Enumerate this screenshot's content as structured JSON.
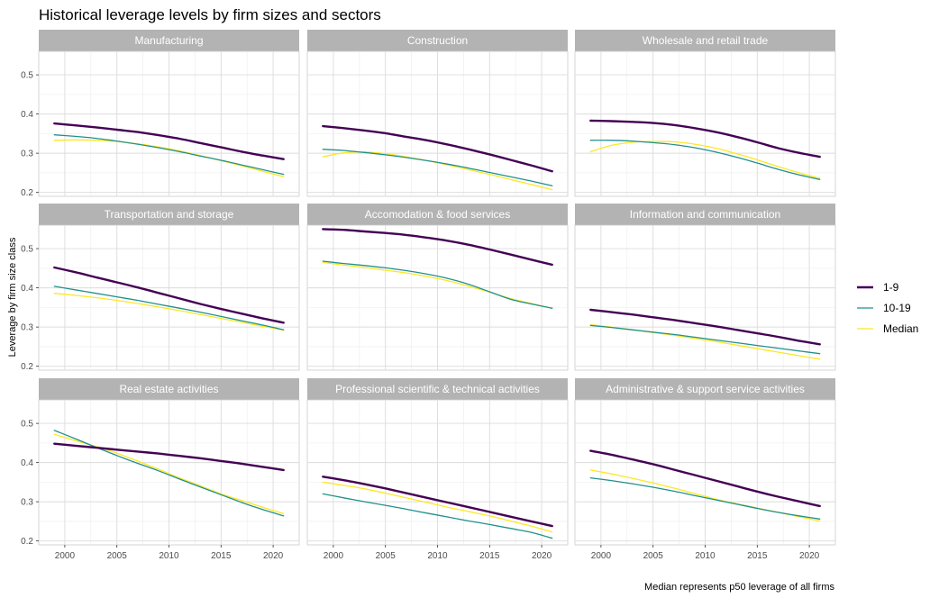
{
  "chart_data": {
    "type": "line",
    "title": "Historical leverage levels by firm sizes and sectors",
    "ylabel": "Leverage by firm size class",
    "xlabel": "",
    "caption": "Median represents p50 leverage of all firms",
    "x": [
      1999,
      2001,
      2003,
      2005,
      2007,
      2009,
      2011,
      2013,
      2015,
      2017,
      2019,
      2021
    ],
    "xticks": [
      2000,
      2005,
      2010,
      2015,
      2020
    ],
    "xlim": [
      1997.5,
      2022.5
    ],
    "yticks": [
      0.2,
      0.3,
      0.4,
      0.5
    ],
    "ylim": [
      0.19,
      0.56
    ],
    "grid": true,
    "legend_position": "right",
    "series_styles": [
      {
        "name": "1-9",
        "color": "#440154",
        "width": 2.4
      },
      {
        "name": "10-19",
        "color": "#21908C",
        "width": 1.3
      },
      {
        "name": "Median",
        "color": "#FDE725",
        "width": 1.3
      }
    ],
    "panels": [
      {
        "title": "Manufacturing",
        "series": [
          {
            "name": "1-9",
            "values": [
              0.376,
              0.371,
              0.366,
              0.36,
              0.354,
              0.346,
              0.337,
              0.326,
              0.315,
              0.304,
              0.294,
              0.285
            ]
          },
          {
            "name": "10-19",
            "values": [
              0.347,
              0.343,
              0.338,
              0.331,
              0.323,
              0.314,
              0.304,
              0.293,
              0.282,
              0.27,
              0.258,
              0.246
            ]
          },
          {
            "name": "Median",
            "values": [
              0.333,
              0.334,
              0.333,
              0.33,
              0.324,
              0.316,
              0.306,
              0.294,
              0.281,
              0.268,
              0.254,
              0.24
            ]
          }
        ]
      },
      {
        "title": "Construction",
        "series": [
          {
            "name": "1-9",
            "values": [
              0.369,
              0.364,
              0.358,
              0.351,
              0.342,
              0.333,
              0.322,
              0.31,
              0.297,
              0.283,
              0.269,
              0.254
            ]
          },
          {
            "name": "10-19",
            "values": [
              0.31,
              0.307,
              0.302,
              0.296,
              0.289,
              0.281,
              0.272,
              0.262,
              0.251,
              0.24,
              0.229,
              0.217
            ]
          },
          {
            "name": "Median",
            "values": [
              0.291,
              0.301,
              0.303,
              0.299,
              0.291,
              0.281,
              0.27,
              0.258,
              0.246,
              0.233,
              0.22,
              0.207
            ]
          }
        ]
      },
      {
        "title": "Wholesale and retail trade",
        "series": [
          {
            "name": "1-9",
            "values": [
              0.383,
              0.382,
              0.38,
              0.377,
              0.372,
              0.364,
              0.354,
              0.342,
              0.328,
              0.313,
              0.301,
              0.291
            ]
          },
          {
            "name": "10-19",
            "values": [
              0.333,
              0.333,
              0.331,
              0.327,
              0.322,
              0.314,
              0.303,
              0.29,
              0.275,
              0.259,
              0.245,
              0.233
            ]
          },
          {
            "name": "Median",
            "values": [
              0.304,
              0.32,
              0.328,
              0.33,
              0.329,
              0.323,
              0.313,
              0.299,
              0.283,
              0.266,
              0.25,
              0.236
            ]
          }
        ]
      },
      {
        "title": "Transportation and storage",
        "series": [
          {
            "name": "1-9",
            "values": [
              0.452,
              0.44,
              0.427,
              0.414,
              0.401,
              0.387,
              0.373,
              0.359,
              0.346,
              0.334,
              0.322,
              0.311
            ]
          },
          {
            "name": "10-19",
            "values": [
              0.404,
              0.395,
              0.386,
              0.377,
              0.368,
              0.358,
              0.348,
              0.338,
              0.327,
              0.316,
              0.305,
              0.293
            ]
          },
          {
            "name": "Median",
            "values": [
              0.386,
              0.381,
              0.375,
              0.368,
              0.36,
              0.351,
              0.342,
              0.332,
              0.322,
              0.312,
              0.302,
              0.292
            ]
          }
        ]
      },
      {
        "title": "Accomodation & food services",
        "series": [
          {
            "name": "1-9",
            "values": [
              0.55,
              0.548,
              0.544,
              0.54,
              0.535,
              0.528,
              0.52,
              0.51,
              0.498,
              0.485,
              0.472,
              0.459
            ]
          },
          {
            "name": "10-19",
            "values": [
              0.468,
              0.462,
              0.457,
              0.451,
              0.444,
              0.435,
              0.424,
              0.409,
              0.39,
              0.371,
              0.359,
              0.348
            ]
          },
          {
            "name": "Median",
            "values": [
              0.465,
              0.458,
              0.452,
              0.445,
              0.438,
              0.429,
              0.418,
              0.404,
              0.389,
              0.373,
              0.36,
              0.348
            ]
          }
        ]
      },
      {
        "title": "Information and communication",
        "series": [
          {
            "name": "1-9",
            "values": [
              0.344,
              0.338,
              0.332,
              0.325,
              0.318,
              0.31,
              0.302,
              0.293,
              0.284,
              0.275,
              0.265,
              0.256
            ]
          },
          {
            "name": "10-19",
            "values": [
              0.304,
              0.299,
              0.293,
              0.287,
              0.281,
              0.274,
              0.267,
              0.26,
              0.253,
              0.246,
              0.239,
              0.232
            ]
          },
          {
            "name": "Median",
            "values": [
              0.306,
              0.3,
              0.293,
              0.286,
              0.279,
              0.271,
              0.263,
              0.254,
              0.245,
              0.236,
              0.227,
              0.218
            ]
          }
        ]
      },
      {
        "title": "Real estate activities",
        "series": [
          {
            "name": "1-9",
            "values": [
              0.448,
              0.443,
              0.438,
              0.433,
              0.428,
              0.423,
              0.417,
              0.411,
              0.404,
              0.397,
              0.389,
              0.381
            ]
          },
          {
            "name": "10-19",
            "values": [
              0.482,
              0.461,
              0.439,
              0.418,
              0.398,
              0.379,
              0.358,
              0.338,
              0.318,
              0.298,
              0.28,
              0.264
            ]
          },
          {
            "name": "Median",
            "values": [
              0.472,
              0.456,
              0.441,
              0.424,
              0.404,
              0.383,
              0.361,
              0.341,
              0.32,
              0.303,
              0.286,
              0.27
            ]
          }
        ]
      },
      {
        "title": "Professional scientific & technical activities",
        "series": [
          {
            "name": "1-9",
            "values": [
              0.364,
              0.355,
              0.345,
              0.334,
              0.322,
              0.31,
              0.298,
              0.286,
              0.274,
              0.262,
              0.25,
              0.238
            ]
          },
          {
            "name": "10-19",
            "values": [
              0.32,
              0.31,
              0.3,
              0.291,
              0.281,
              0.271,
              0.261,
              0.251,
              0.242,
              0.232,
              0.222,
              0.207
            ]
          },
          {
            "name": "Median",
            "values": [
              0.35,
              0.342,
              0.333,
              0.322,
              0.31,
              0.298,
              0.286,
              0.275,
              0.264,
              0.251,
              0.238,
              0.223
            ]
          }
        ]
      },
      {
        "title": "Administrative & support service activities",
        "series": [
          {
            "name": "1-9",
            "values": [
              0.43,
              0.42,
              0.408,
              0.396,
              0.382,
              0.368,
              0.354,
              0.34,
              0.326,
              0.313,
              0.301,
              0.289
            ]
          },
          {
            "name": "10-19",
            "values": [
              0.361,
              0.354,
              0.346,
              0.337,
              0.327,
              0.316,
              0.305,
              0.294,
              0.283,
              0.273,
              0.264,
              0.256
            ]
          },
          {
            "name": "Median",
            "values": [
              0.381,
              0.371,
              0.36,
              0.348,
              0.335,
              0.321,
              0.307,
              0.295,
              0.284,
              0.273,
              0.262,
              0.251
            ]
          }
        ]
      }
    ]
  }
}
